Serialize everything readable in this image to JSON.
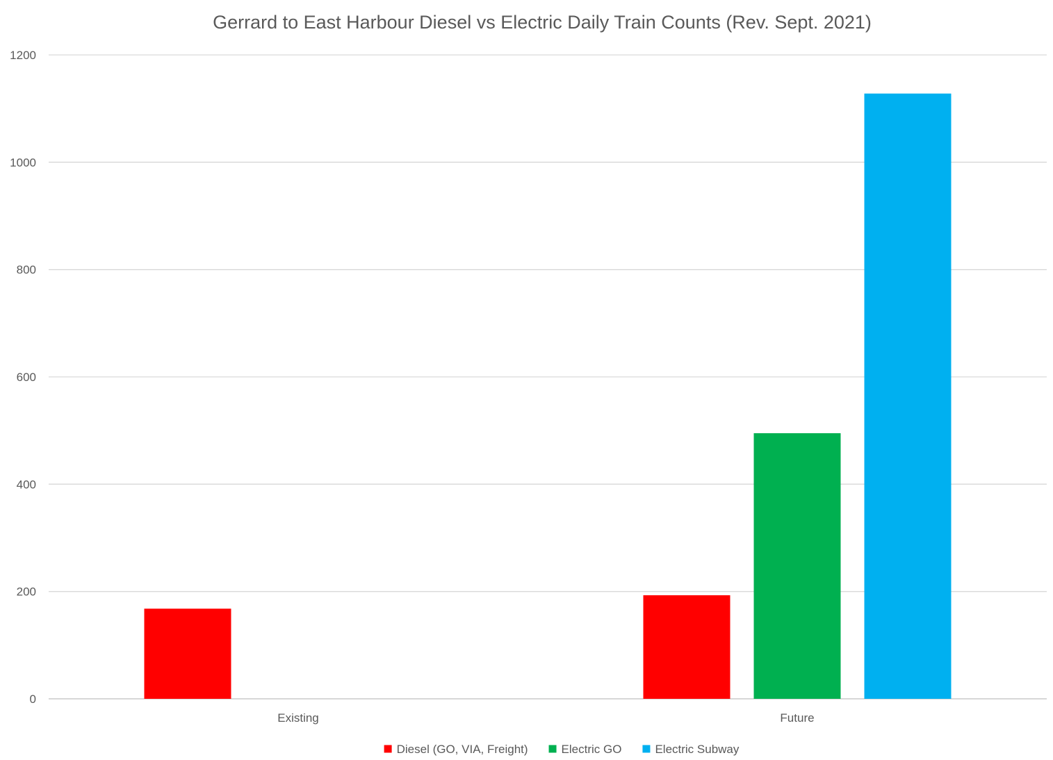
{
  "chart_data": {
    "type": "bar",
    "title": "Gerrard to East Harbour Diesel vs Electric Daily Train Counts (Rev. Sept. 2021)",
    "xlabel": "",
    "ylabel": "",
    "ylim": [
      0,
      1200
    ],
    "yticks": [
      0,
      200,
      400,
      600,
      800,
      1000,
      1200
    ],
    "grid": true,
    "legend_position": "bottom",
    "categories": [
      "Existing",
      "Future"
    ],
    "series": [
      {
        "name": "Diesel  (GO, VIA, Freight)",
        "color": "#ff0000",
        "values": [
          168,
          193
        ]
      },
      {
        "name": "Electric GO",
        "color": "#00b050",
        "values": [
          0,
          495
        ]
      },
      {
        "name": "Electric Subway",
        "color": "#00b0f0",
        "values": [
          0,
          1128
        ]
      }
    ]
  }
}
